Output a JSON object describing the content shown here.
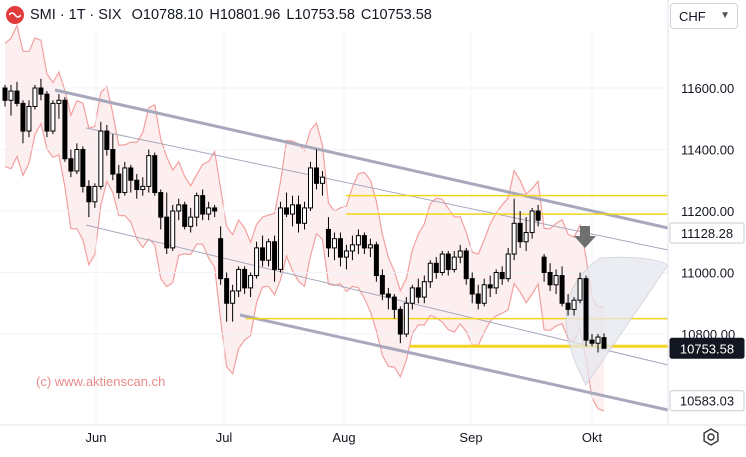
{
  "header": {
    "symbol": "SMI",
    "interval": "1T",
    "exchange": "SIX",
    "open_label": "O",
    "open": "10788.10",
    "high_label": "H",
    "high": "10801.96",
    "low_label": "L",
    "low": "10753.58",
    "close_label": "C",
    "close": "10753.58"
  },
  "currency": {
    "label": "CHF",
    "icon": "chevron-down-icon"
  },
  "settings_icon": "gear-icon",
  "colors": {
    "candle": "#000000",
    "channel": "#a8a8bc",
    "yellow_line": "#f2d51c",
    "envelope": "#f2a0a0",
    "envelope_fill": "#fbe4e4",
    "label_bg": "#ffffff",
    "price_label_bg": "#131722"
  },
  "watermark": "(c) www.aktienscan.ch",
  "chart_data": {
    "type": "candlestick",
    "y_axis": {
      "ticks": [
        10800,
        11000,
        11200,
        11400,
        11600
      ],
      "range": [
        10500,
        11800
      ]
    },
    "x_axis": {
      "labels": [
        "Jun",
        "Jul",
        "Aug",
        "Sep",
        "Okt"
      ]
    },
    "price_labels": [
      {
        "value": 11128.28,
        "text": "11128.28",
        "style": "outline"
      },
      {
        "value": 10753.58,
        "text": "10753.58",
        "style": "filled"
      },
      {
        "value": 10583.03,
        "text": "10583.03",
        "style": "outline"
      }
    ],
    "horizontal_levels": [
      11250,
      11190,
      10850,
      10760
    ],
    "candles": [
      [
        11600,
        11610,
        11540,
        11560
      ],
      [
        11560,
        11610,
        11510,
        11590
      ],
      [
        11590,
        11620,
        11540,
        11550
      ],
      [
        11550,
        11560,
        11420,
        11460
      ],
      [
        11460,
        11560,
        11440,
        11540
      ],
      [
        11540,
        11610,
        11530,
        11600
      ],
      [
        11600,
        11630,
        11560,
        11580
      ],
      [
        11580,
        11590,
        11440,
        11460
      ],
      [
        11460,
        11560,
        11450,
        11550
      ],
      [
        11550,
        11580,
        11500,
        11560
      ],
      [
        11560,
        11570,
        11360,
        11370
      ],
      [
        11370,
        11400,
        11310,
        11330
      ],
      [
        11330,
        11420,
        11320,
        11400
      ],
      [
        11400,
        11410,
        11260,
        11280
      ],
      [
        11280,
        11300,
        11180,
        11230
      ],
      [
        11230,
        11290,
        11210,
        11280
      ],
      [
        11280,
        11490,
        11270,
        11460
      ],
      [
        11460,
        11480,
        11380,
        11400
      ],
      [
        11400,
        11450,
        11300,
        11320
      ],
      [
        11320,
        11350,
        11240,
        11260
      ],
      [
        11260,
        11360,
        11250,
        11340
      ],
      [
        11340,
        11350,
        11260,
        11300
      ],
      [
        11300,
        11320,
        11240,
        11270
      ],
      [
        11270,
        11310,
        11250,
        11280
      ],
      [
        11280,
        11400,
        11260,
        11380
      ],
      [
        11380,
        11390,
        11250,
        11260
      ],
      [
        11260,
        11270,
        11140,
        11180
      ],
      [
        11180,
        11260,
        11060,
        11080
      ],
      [
        11080,
        11220,
        11070,
        11200
      ],
      [
        11200,
        11240,
        11170,
        11220
      ],
      [
        11220,
        11230,
        11140,
        11150
      ],
      [
        11150,
        11210,
        11130,
        11180
      ],
      [
        11180,
        11260,
        11150,
        11250
      ],
      [
        11250,
        11270,
        11170,
        11190
      ],
      [
        11190,
        11230,
        11170,
        11210
      ],
      [
        11210,
        11220,
        11180,
        11200
      ],
      [
        11110,
        11150,
        10960,
        10980
      ],
      [
        10980,
        11000,
        10840,
        10900
      ],
      [
        10900,
        10960,
        10840,
        10940
      ],
      [
        10940,
        11020,
        10920,
        11010
      ],
      [
        11010,
        11020,
        10930,
        10950
      ],
      [
        10950,
        11000,
        10920,
        10990
      ],
      [
        10990,
        11100,
        10980,
        11080
      ],
      [
        11080,
        11120,
        11020,
        11040
      ],
      [
        11040,
        11110,
        11020,
        11100
      ],
      [
        11100,
        11120,
        10970,
        11010
      ],
      [
        11010,
        11230,
        11000,
        11210
      ],
      [
        11210,
        11260,
        11180,
        11190
      ],
      [
        11190,
        11250,
        11150,
        11220
      ],
      [
        11220,
        11250,
        11130,
        11160
      ],
      [
        11160,
        11230,
        11140,
        11210
      ],
      [
        11210,
        11360,
        11200,
        11340
      ],
      [
        11340,
        11400,
        11270,
        11290
      ],
      [
        11290,
        11330,
        11250,
        11310
      ],
      [
        11140,
        11180,
        11050,
        11080
      ],
      [
        11080,
        11130,
        11040,
        11110
      ],
      [
        11110,
        11130,
        11020,
        11050
      ],
      [
        11050,
        11090,
        11010,
        11070
      ],
      [
        11070,
        11120,
        11040,
        11090
      ],
      [
        11090,
        11140,
        11060,
        11120
      ],
      [
        11120,
        11130,
        11060,
        11080
      ],
      [
        11080,
        11110,
        11050,
        11090
      ],
      [
        11090,
        11100,
        10970,
        10990
      ],
      [
        10990,
        11010,
        10910,
        10930
      ],
      [
        10930,
        10950,
        10880,
        10920
      ],
      [
        10920,
        10930,
        10850,
        10880
      ],
      [
        10880,
        10890,
        10770,
        10800
      ],
      [
        10800,
        10920,
        10790,
        10900
      ],
      [
        10900,
        10960,
        10880,
        10950
      ],
      [
        10950,
        10980,
        10900,
        10920
      ],
      [
        10920,
        10990,
        10900,
        10970
      ],
      [
        10970,
        11040,
        10950,
        11030
      ],
      [
        11030,
        11050,
        10980,
        11000
      ],
      [
        11000,
        11070,
        10990,
        11060
      ],
      [
        11060,
        11070,
        10990,
        11010
      ],
      [
        11010,
        11070,
        11000,
        11050
      ],
      [
        11050,
        11090,
        11030,
        11070
      ],
      [
        11070,
        11080,
        10960,
        10980
      ],
      [
        10980,
        11000,
        10900,
        10930
      ],
      [
        10930,
        10960,
        10880,
        10900
      ],
      [
        10900,
        10980,
        10890,
        10960
      ],
      [
        10960,
        10990,
        10920,
        10950
      ],
      [
        10950,
        11010,
        10930,
        11000
      ],
      [
        11000,
        11020,
        10960,
        10980
      ],
      [
        10980,
        11080,
        10970,
        11060
      ],
      [
        11060,
        11240,
        11040,
        11160
      ],
      [
        11160,
        11200,
        11080,
        11100
      ],
      [
        11100,
        11180,
        11070,
        11130
      ],
      [
        11130,
        11210,
        11110,
        11200
      ],
      [
        11200,
        11220,
        11150,
        11170
      ],
      [
        11050,
        11060,
        10970,
        11000
      ],
      [
        11000,
        11030,
        10940,
        10960
      ],
      [
        10960,
        11010,
        10930,
        10990
      ],
      [
        10990,
        11020,
        10890,
        10900
      ],
      [
        10900,
        10930,
        10860,
        10880
      ],
      [
        10880,
        10920,
        10860,
        10910
      ],
      [
        10910,
        11000,
        10900,
        10980
      ],
      [
        10980,
        10990,
        10760,
        10780
      ],
      [
        10780,
        10800,
        10760,
        10770
      ],
      [
        10770,
        10800,
        10740,
        10790
      ],
      [
        10788.1,
        10801.96,
        10753.58,
        10753.58
      ]
    ]
  }
}
